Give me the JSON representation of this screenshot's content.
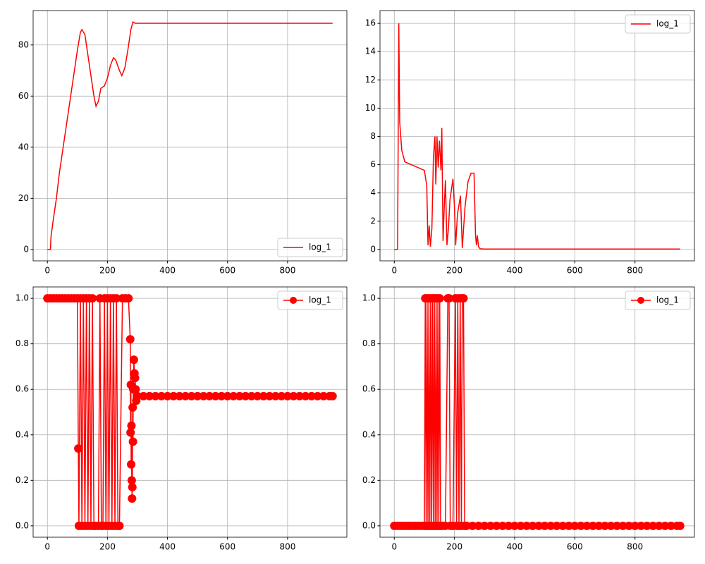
{
  "chart_data": [
    {
      "type": "line",
      "marker": false,
      "legend": "lower right",
      "grid": true,
      "xlim": [
        -47.5,
        997.5
      ],
      "ylim": [
        -4.45,
        93.45
      ],
      "xticks": [
        0,
        200,
        400,
        600,
        800
      ],
      "yticks": [
        0,
        20,
        40,
        60,
        80
      ],
      "x": [
        0,
        10,
        12,
        20,
        30,
        40,
        50,
        60,
        70,
        80,
        90,
        100,
        110,
        115,
        125,
        135,
        145,
        155,
        162,
        170,
        178,
        190,
        200,
        210,
        220,
        228,
        240,
        248,
        258,
        268,
        278,
        285,
        292,
        950
      ],
      "series": [
        {
          "name": "log_1",
          "color": "#ff0000",
          "values": [
            0,
            0,
            5,
            12,
            20,
            30,
            38,
            46,
            54,
            62,
            70,
            78,
            85,
            86,
            84,
            76,
            68,
            60,
            56,
            58,
            63,
            64,
            67,
            72,
            75,
            74,
            70,
            68,
            71,
            78,
            86,
            89,
            88.5,
            88.5
          ]
        }
      ]
    },
    {
      "type": "line",
      "marker": false,
      "legend": "upper right",
      "grid": true,
      "xlim": [
        -47.5,
        997.5
      ],
      "ylim": [
        -0.805,
        16.905
      ],
      "xticks": [
        0,
        200,
        400,
        600,
        800
      ],
      "yticks": [
        0,
        2,
        4,
        6,
        8,
        10,
        12,
        14,
        16
      ],
      "x": [
        0,
        10,
        11,
        15,
        18,
        25,
        35,
        100,
        108,
        112,
        116,
        120,
        125,
        130,
        135,
        138,
        142,
        146,
        150,
        155,
        158,
        162,
        166,
        170,
        175,
        180,
        185,
        195,
        200,
        204,
        210,
        220,
        226,
        235,
        245,
        255,
        265,
        270,
        273,
        276,
        280,
        285,
        300,
        950
      ],
      "series": [
        {
          "name": "log_1",
          "color": "#ff0000",
          "values": [
            0,
            0,
            0.1,
            16,
            9,
            7,
            6.2,
            5.6,
            4.5,
            0.3,
            1.7,
            0.2,
            1.5,
            6.5,
            8,
            4.6,
            8,
            5.8,
            7.7,
            5.6,
            8.6,
            0.6,
            3,
            4.9,
            0.3,
            1.5,
            3.5,
            5,
            3,
            0.3,
            2.5,
            3.8,
            0.1,
            3,
            4.8,
            5.4,
            5.4,
            1,
            0.3,
            1,
            0.2,
            0.05,
            0.03,
            0.03
          ]
        }
      ]
    },
    {
      "type": "line",
      "marker": true,
      "legend": "upper right",
      "grid": true,
      "xlim": [
        -47.5,
        997.5
      ],
      "ylim": [
        -0.05,
        1.05
      ],
      "xticks": [
        0,
        200,
        400,
        600,
        800
      ],
      "yticks": [
        {
          "value": 0,
          "label": "0.0"
        },
        0.2,
        0.4,
        0.6,
        0.8,
        {
          "value": 1,
          "label": "1.0"
        }
      ],
      "x": [
        0,
        10,
        20,
        30,
        40,
        50,
        60,
        70,
        80,
        90,
        100,
        103,
        105,
        110,
        115,
        120,
        125,
        130,
        135,
        140,
        145,
        150,
        155,
        160,
        170,
        175,
        180,
        185,
        190,
        195,
        200,
        205,
        210,
        215,
        220,
        225,
        230,
        235,
        240,
        250,
        260,
        270,
        276,
        277,
        278,
        279,
        280,
        281,
        282,
        283,
        284,
        285,
        286,
        288,
        290,
        292,
        294,
        296,
        300,
        320,
        340,
        360,
        380,
        400,
        420,
        440,
        460,
        480,
        500,
        520,
        540,
        560,
        580,
        600,
        620,
        640,
        660,
        680,
        700,
        720,
        740,
        760,
        780,
        800,
        820,
        840,
        860,
        880,
        900,
        920,
        940,
        950
      ],
      "series": [
        {
          "name": "log_1",
          "color": "#ff0000",
          "values": [
            1,
            1,
            1,
            1,
            1,
            1,
            1,
            1,
            1,
            1,
            1,
            0.34,
            0,
            1,
            0,
            1,
            0,
            1,
            0,
            1,
            0,
            1,
            0,
            0,
            0,
            1,
            0,
            0,
            1,
            0,
            1,
            0,
            1,
            0,
            1,
            0,
            1,
            0,
            0,
            1,
            1,
            1,
            0.82,
            0.41,
            0.62,
            0.27,
            0.44,
            0.2,
            0.12,
            0.17,
            0.52,
            0.37,
            0.6,
            0.73,
            0.67,
            0.65,
            0.6,
            0.55,
            0.57,
            0.57,
            0.57,
            0.57,
            0.57,
            0.57,
            0.57,
            0.57,
            0.57,
            0.57,
            0.57,
            0.57,
            0.57,
            0.57,
            0.57,
            0.57,
            0.57,
            0.57,
            0.57,
            0.57,
            0.57,
            0.57,
            0.57,
            0.57,
            0.57,
            0.57,
            0.57,
            0.57,
            0.57,
            0.57,
            0.57,
            0.57,
            0.57,
            0.57
          ]
        }
      ]
    },
    {
      "type": "line",
      "marker": true,
      "legend": "upper right",
      "grid": true,
      "xlim": [
        -47.5,
        997.5
      ],
      "ylim": [
        -0.05,
        1.05
      ],
      "xticks": [
        0,
        200,
        400,
        600,
        800
      ],
      "yticks": [
        {
          "value": 0,
          "label": "0.0"
        },
        0.2,
        0.4,
        0.6,
        0.8,
        {
          "value": 1,
          "label": "1.0"
        }
      ],
      "x": [
        0,
        10,
        20,
        30,
        40,
        50,
        60,
        70,
        80,
        90,
        100,
        103,
        106,
        109,
        112,
        115,
        118,
        121,
        124,
        127,
        130,
        133,
        136,
        139,
        142,
        145,
        148,
        151,
        154,
        160,
        170,
        178,
        182,
        186,
        195,
        203,
        207,
        211,
        215,
        219,
        223,
        226,
        230,
        234,
        240,
        260,
        280,
        300,
        320,
        340,
        360,
        380,
        400,
        420,
        440,
        460,
        480,
        500,
        520,
        540,
        560,
        580,
        600,
        620,
        640,
        660,
        680,
        700,
        720,
        740,
        760,
        780,
        800,
        820,
        840,
        860,
        880,
        900,
        920,
        940,
        950
      ],
      "series": [
        {
          "name": "log_1",
          "color": "#ff0000",
          "values": [
            0,
            0,
            0,
            0,
            0,
            0,
            0,
            0,
            0,
            0,
            0,
            1,
            0,
            1,
            0,
            1,
            0,
            1,
            0,
            1,
            0,
            1,
            0,
            1,
            0,
            1,
            0,
            1,
            0,
            0,
            0,
            1,
            1,
            0,
            0,
            1,
            0,
            1,
            0,
            1,
            0,
            1,
            1,
            0,
            0,
            0,
            0,
            0,
            0,
            0,
            0,
            0,
            0,
            0,
            0,
            0,
            0,
            0,
            0,
            0,
            0,
            0,
            0,
            0,
            0,
            0,
            0,
            0,
            0,
            0,
            0,
            0,
            0,
            0,
            0,
            0,
            0,
            0,
            0,
            0,
            0
          ]
        }
      ]
    }
  ]
}
